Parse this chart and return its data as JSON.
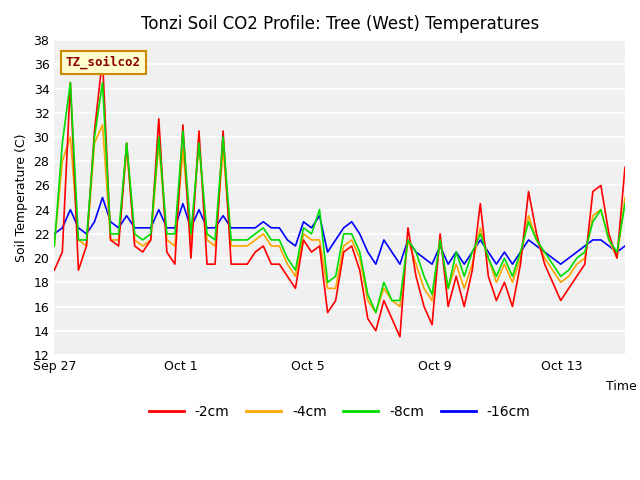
{
  "title": "Tonzi Soil CO2 Profile: Tree (West) Temperatures",
  "xlabel": "Time",
  "ylabel": "Soil Temperature (C)",
  "watermark": "TZ_soilco2",
  "ylim": [
    12,
    38
  ],
  "yticks": [
    12,
    14,
    16,
    18,
    20,
    22,
    24,
    26,
    28,
    30,
    32,
    34,
    36,
    38
  ],
  "bg_color": "#f0f0f0",
  "grid_color": "#ffffff",
  "line_colors": [
    "#ff0000",
    "#ffa500",
    "#00dd00",
    "#0000ff"
  ],
  "legend_labels": [
    "-2cm",
    "-4cm",
    "-8cm",
    "-16cm"
  ],
  "x_tick_labels": [
    "Sep 27",
    "Oct 1",
    "Oct 5",
    "Oct 9",
    "Oct 13"
  ],
  "x_tick_positions": [
    0,
    4,
    8,
    12,
    16
  ],
  "total_days": 18,
  "n_per_day": 4,
  "data_2cm": [
    19.0,
    20.5,
    34.5,
    19.0,
    21.0,
    30.5,
    36.5,
    21.5,
    21.0,
    29.5,
    21.0,
    20.5,
    21.5,
    31.5,
    20.5,
    19.5,
    31.0,
    20.0,
    30.5,
    19.5,
    19.5,
    30.5,
    19.5,
    19.5,
    19.5,
    20.5,
    21.0,
    19.5,
    19.5,
    18.5,
    17.5,
    21.5,
    20.5,
    21.0,
    15.5,
    16.5,
    20.5,
    21.0,
    19.0,
    15.0,
    14.0,
    16.5,
    15.0,
    13.5,
    22.5,
    18.5,
    16.0,
    14.5,
    22.0,
    16.0,
    18.5,
    16.0,
    19.0,
    24.5,
    18.5,
    16.5,
    18.0,
    16.0,
    19.5,
    25.5,
    22.0,
    19.5,
    18.0,
    16.5,
    17.5,
    18.5,
    19.5,
    25.5,
    26.0,
    22.0,
    20.0,
    27.5
  ],
  "data_4cm": [
    21.0,
    28.0,
    30.0,
    21.5,
    21.0,
    29.5,
    31.0,
    21.5,
    21.5,
    29.0,
    21.5,
    21.0,
    21.5,
    29.5,
    21.5,
    21.0,
    29.0,
    21.5,
    29.5,
    21.5,
    21.0,
    29.0,
    21.0,
    21.0,
    21.0,
    21.5,
    22.0,
    21.0,
    21.0,
    19.5,
    18.5,
    22.0,
    21.5,
    21.5,
    17.5,
    17.5,
    21.0,
    21.5,
    20.0,
    16.5,
    15.5,
    17.5,
    16.5,
    16.0,
    21.5,
    19.5,
    17.5,
    16.5,
    21.5,
    17.5,
    19.5,
    17.5,
    19.5,
    22.5,
    20.0,
    18.0,
    19.5,
    18.0,
    20.0,
    23.5,
    21.5,
    20.0,
    19.0,
    18.0,
    18.5,
    19.5,
    20.0,
    23.5,
    24.0,
    21.5,
    20.0,
    25.0
  ],
  "data_8cm": [
    21.0,
    29.5,
    34.5,
    21.5,
    21.5,
    30.0,
    34.5,
    22.0,
    22.0,
    29.5,
    22.0,
    21.5,
    22.0,
    30.0,
    22.0,
    22.0,
    30.5,
    22.0,
    29.5,
    22.0,
    21.5,
    30.0,
    21.5,
    21.5,
    21.5,
    22.0,
    22.5,
    21.5,
    21.5,
    20.0,
    19.0,
    22.5,
    22.0,
    24.0,
    18.0,
    18.5,
    22.0,
    22.0,
    20.5,
    17.0,
    15.5,
    18.0,
    16.5,
    16.5,
    21.5,
    20.5,
    18.5,
    17.0,
    21.5,
    17.5,
    20.5,
    18.5,
    20.5,
    22.0,
    20.0,
    18.5,
    20.0,
    18.5,
    20.5,
    23.0,
    21.5,
    20.5,
    19.5,
    18.5,
    19.0,
    20.0,
    20.5,
    23.0,
    24.0,
    21.5,
    20.5,
    24.5
  ],
  "data_16cm": [
    22.0,
    22.5,
    24.0,
    22.5,
    22.0,
    23.0,
    25.0,
    23.0,
    22.5,
    23.5,
    22.5,
    22.5,
    22.5,
    24.0,
    22.5,
    22.5,
    24.5,
    22.5,
    24.0,
    22.5,
    22.5,
    23.5,
    22.5,
    22.5,
    22.5,
    22.5,
    23.0,
    22.5,
    22.5,
    21.5,
    21.0,
    23.0,
    22.5,
    23.5,
    20.5,
    21.5,
    22.5,
    23.0,
    22.0,
    20.5,
    19.5,
    21.5,
    20.5,
    19.5,
    21.5,
    20.5,
    20.0,
    19.5,
    21.0,
    19.5,
    20.5,
    19.5,
    20.5,
    21.5,
    20.5,
    19.5,
    20.5,
    19.5,
    20.5,
    21.5,
    21.0,
    20.5,
    20.0,
    19.5,
    20.0,
    20.5,
    21.0,
    21.5,
    21.5,
    21.0,
    20.5,
    21.0
  ]
}
